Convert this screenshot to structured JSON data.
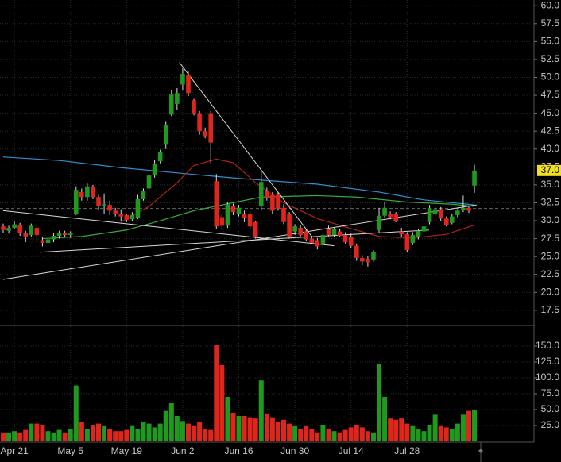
{
  "chart_data": {
    "type": "candlestick",
    "up_color": "#1f9a1f",
    "down_color": "#e0251b",
    "grid": true,
    "categories": [
      null,
      null,
      "Apr 21",
      null,
      null,
      null,
      null,
      null,
      null,
      null,
      null,
      null,
      "May 5",
      null,
      null,
      null,
      null,
      null,
      null,
      null,
      null,
      null,
      "May 19",
      null,
      null,
      null,
      null,
      null,
      null,
      null,
      null,
      null,
      "Jun 2",
      null,
      null,
      null,
      null,
      null,
      null,
      null,
      null,
      null,
      "Jun 16",
      null,
      null,
      null,
      null,
      null,
      null,
      null,
      null,
      null,
      "Jun 30",
      null,
      null,
      null,
      null,
      null,
      null,
      null,
      null,
      null,
      "Jul 14",
      null,
      null,
      null,
      null,
      null,
      null,
      null,
      null,
      null,
      "Jul 28",
      null,
      null,
      null,
      null,
      null,
      null,
      null,
      null,
      null,
      null,
      null,
      null
    ],
    "ohlc": [
      [
        29.2,
        29.6,
        28.3,
        28.7
      ],
      [
        28.6,
        29.3,
        28.2,
        29.0
      ],
      [
        29.0,
        29.9,
        28.8,
        29.5
      ],
      [
        29.4,
        29.7,
        27.9,
        28.3
      ],
      [
        28.3,
        28.6,
        27.0,
        27.8
      ],
      [
        28.0,
        29.6,
        27.8,
        29.3
      ],
      [
        29.0,
        29.3,
        27.8,
        28.0
      ],
      [
        27.3,
        27.8,
        26.4,
        26.9
      ],
      [
        26.9,
        27.6,
        26.3,
        27.4
      ],
      [
        27.4,
        28.3,
        27.0,
        27.9
      ],
      [
        27.9,
        28.6,
        27.5,
        28.3
      ],
      [
        28.3,
        28.6,
        27.7,
        28.0
      ],
      [
        28.0,
        28.5,
        27.6,
        28.2
      ],
      [
        31.0,
        34.8,
        30.8,
        34.3
      ],
      [
        34.0,
        34.5,
        32.8,
        33.3
      ],
      [
        33.3,
        35.2,
        32.8,
        34.8
      ],
      [
        34.8,
        35.0,
        33.0,
        33.3
      ],
      [
        33.3,
        33.6,
        31.5,
        32.0
      ],
      [
        32.0,
        33.8,
        31.0,
        32.3
      ],
      [
        32.2,
        32.8,
        30.8,
        31.4
      ],
      [
        31.4,
        31.8,
        30.6,
        31.0
      ],
      [
        31.0,
        31.6,
        30.0,
        30.6
      ],
      [
        30.8,
        31.0,
        29.8,
        30.1
      ],
      [
        30.2,
        31.2,
        29.9,
        30.8
      ],
      [
        30.4,
        33.6,
        30.2,
        33.0
      ],
      [
        33.0,
        34.5,
        32.8,
        34.1
      ],
      [
        34.5,
        36.6,
        34.2,
        36.3
      ],
      [
        36.3,
        38.5,
        36.0,
        38.0
      ],
      [
        38.3,
        39.9,
        38.0,
        39.6
      ],
      [
        40.6,
        43.8,
        40.0,
        43.3
      ],
      [
        44.8,
        48.2,
        44.6,
        47.6
      ],
      [
        46.3,
        48.5,
        45.5,
        47.8
      ],
      [
        49.0,
        51.3,
        48.2,
        50.5
      ],
      [
        50.4,
        50.8,
        47.4,
        47.8
      ],
      [
        46.8,
        47.0,
        44.7,
        45.0
      ],
      [
        45.0,
        45.3,
        42.0,
        42.5
      ],
      [
        42.5,
        43.0,
        41.5,
        41.8
      ],
      [
        45.0,
        45.3,
        38.0,
        40.9
      ],
      [
        35.5,
        36.5,
        28.8,
        29.2
      ],
      [
        30.5,
        31.0,
        28.8,
        29.3
      ],
      [
        29.3,
        32.6,
        29.0,
        32.3
      ],
      [
        32.0,
        32.4,
        30.8,
        31.2
      ],
      [
        31.0,
        32.2,
        30.6,
        31.8
      ],
      [
        31.0,
        31.4,
        29.8,
        30.4
      ],
      [
        30.9,
        31.2,
        28.8,
        29.2
      ],
      [
        29.8,
        30.0,
        27.5,
        27.8
      ],
      [
        32.0,
        37.0,
        31.5,
        35.4
      ],
      [
        34.2,
        34.6,
        32.8,
        33.1
      ],
      [
        33.6,
        34.0,
        31.0,
        31.4
      ],
      [
        33.6,
        34.0,
        31.4,
        31.7
      ],
      [
        31.8,
        32.3,
        29.5,
        29.8
      ],
      [
        30.9,
        31.2,
        27.5,
        27.8
      ],
      [
        28.5,
        29.5,
        28.0,
        29.2
      ],
      [
        29.0,
        29.4,
        27.8,
        28.0
      ],
      [
        28.5,
        28.8,
        27.2,
        27.4
      ],
      [
        27.5,
        27.9,
        26.7,
        26.9
      ],
      [
        27.3,
        27.6,
        26.0,
        26.4
      ],
      [
        26.7,
        28.3,
        26.2,
        28.0
      ],
      [
        28.9,
        29.3,
        27.8,
        28.0
      ],
      [
        28.0,
        29.0,
        27.7,
        28.9
      ],
      [
        28.5,
        28.8,
        27.7,
        27.9
      ],
      [
        28.0,
        28.4,
        26.8,
        27.0
      ],
      [
        27.8,
        28.2,
        26.2,
        26.5
      ],
      [
        26.5,
        26.8,
        24.4,
        24.8
      ],
      [
        24.8,
        25.2,
        23.8,
        24.3
      ],
      [
        24.7,
        25.0,
        23.6,
        24.2
      ],
      [
        24.6,
        25.9,
        24.3,
        25.6
      ],
      [
        28.7,
        31.8,
        28.3,
        30.7
      ],
      [
        30.7,
        32.6,
        30.4,
        31.8
      ],
      [
        30.9,
        31.3,
        30.2,
        30.5
      ],
      [
        30.9,
        31.2,
        29.8,
        30.0
      ],
      [
        28.5,
        29.0,
        27.8,
        28.1
      ],
      [
        28.1,
        28.4,
        25.6,
        25.9
      ],
      [
        26.9,
        28.4,
        26.6,
        28.0
      ],
      [
        27.7,
        28.8,
        27.4,
        28.6
      ],
      [
        28.5,
        29.5,
        28.2,
        29.2
      ],
      [
        29.8,
        32.2,
        29.5,
        31.8
      ],
      [
        31.0,
        31.9,
        30.6,
        31.6
      ],
      [
        31.6,
        31.9,
        30.0,
        30.3
      ],
      [
        30.3,
        30.6,
        29.2,
        29.4
      ],
      [
        29.7,
        30.9,
        29.5,
        30.6
      ],
      [
        30.8,
        31.6,
        30.5,
        31.4
      ],
      [
        31.5,
        33.5,
        31.2,
        31.8
      ],
      [
        31.8,
        32.0,
        31.1,
        31.4
      ],
      [
        34.9,
        37.8,
        33.9,
        37.0
      ]
    ],
    "volume": [
      14,
      14,
      16,
      14,
      18,
      28,
      28,
      26,
      16,
      14,
      18,
      14,
      20,
      88,
      30,
      20,
      26,
      28,
      24,
      20,
      16,
      16,
      18,
      24,
      20,
      30,
      28,
      22,
      28,
      48,
      60,
      40,
      32,
      28,
      24,
      30,
      20,
      18,
      152,
      120,
      70,
      45,
      40,
      40,
      38,
      36,
      96,
      44,
      38,
      30,
      34,
      28,
      24,
      20,
      24,
      20,
      14,
      26,
      20,
      16,
      14,
      18,
      22,
      26,
      22,
      16,
      14,
      122,
      70,
      36,
      34,
      36,
      28,
      24,
      20,
      16,
      26,
      42,
      24,
      22,
      20,
      28,
      42,
      48,
      50
    ],
    "ylim": [
      15.6,
      60.8
    ],
    "yticks": [
      {
        "value": 17.5,
        "label": "17.5"
      },
      {
        "value": 20,
        "label": "20.0"
      },
      {
        "value": 22.5,
        "label": "22.5"
      },
      {
        "value": 25,
        "label": "25.0"
      },
      {
        "value": 27.5,
        "label": "27.5"
      },
      {
        "value": 30,
        "label": "30.0"
      },
      {
        "value": 32.5,
        "label": "32.5"
      },
      {
        "value": 35,
        "label": "35.0"
      },
      {
        "value": 37.5,
        "label": "37.5"
      },
      {
        "value": 40,
        "label": "40.0"
      },
      {
        "value": 42.5,
        "label": "42.5"
      },
      {
        "value": 45,
        "label": "45.0"
      },
      {
        "value": 47.5,
        "label": "47.5"
      },
      {
        "value": 50,
        "label": "50.0"
      },
      {
        "value": 52.5,
        "label": "52.5"
      },
      {
        "value": 55,
        "label": "55.0"
      },
      {
        "value": 57.5,
        "label": "57.5"
      },
      {
        "value": 60,
        "label": "60.0"
      }
    ],
    "volume_ylim": [
      0,
      180
    ],
    "volume_yticks": [
      {
        "value": 25,
        "label": "25.0"
      },
      {
        "value": 50,
        "label": "50.0"
      },
      {
        "value": 75,
        "label": "75.0"
      },
      {
        "value": 100,
        "label": "100.0"
      },
      {
        "value": 125,
        "label": "125.0"
      },
      {
        "value": 150,
        "label": "150.0"
      }
    ],
    "moving_averages": [
      {
        "color": "#2f8fd0",
        "x": [
          0,
          10,
          21,
          32,
          42,
          56,
          67,
          75,
          84
        ],
        "values": [
          38.9,
          38.4,
          37.4,
          36.6,
          35.9,
          35.1,
          34.0,
          32.9,
          32.2
        ]
      },
      {
        "color": "#3aa83a",
        "x": [
          7,
          14,
          22,
          28,
          34,
          39,
          46,
          56,
          63,
          72,
          80,
          84
        ],
        "values": [
          27.5,
          27.8,
          28.7,
          30.0,
          31.4,
          32.2,
          33.3,
          33.5,
          33.3,
          32.6,
          32.3,
          32.0
        ]
      },
      {
        "color": "#b0201c",
        "x": [
          21,
          26,
          31,
          34,
          38,
          41,
          45,
          50,
          56,
          62,
          67,
          73,
          79,
          84
        ],
        "values": [
          29.8,
          32.0,
          35.3,
          37.7,
          38.6,
          38.1,
          35.3,
          32.5,
          30.3,
          28.9,
          27.8,
          27.6,
          28.1,
          29.4
        ]
      }
    ],
    "trendlines": [
      {
        "x": [
          31.4,
          55
        ],
        "values": [
          52.1,
          27.8
        ]
      },
      {
        "x": [
          0,
          59
        ],
        "values": [
          31.4,
          26.5
        ]
      },
      {
        "x": [
          6.5,
          75.9
        ],
        "values": [
          25.6,
          28.7
        ]
      },
      {
        "x": [
          0,
          84.4
        ],
        "values": [
          21.8,
          32.2
        ]
      }
    ],
    "reference_line": 31.7,
    "last_price": {
      "value": 37.0,
      "label": "37.0"
    }
  }
}
